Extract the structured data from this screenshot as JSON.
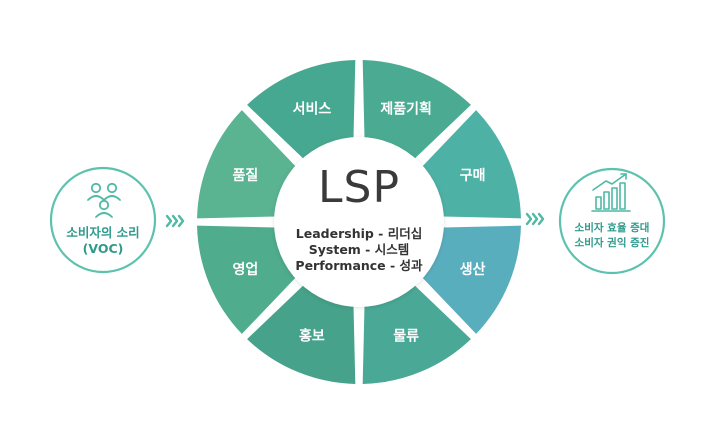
{
  "center": {
    "title": "LSP",
    "lines": [
      "Leadership - 리더십",
      "System - 시스템",
      "Performance - 성과"
    ]
  },
  "segments": [
    {
      "label": "서비스",
      "color": "#47a891"
    },
    {
      "label": "제품기획",
      "color": "#4aab92"
    },
    {
      "label": "구매",
      "color": "#4eb1a5"
    },
    {
      "label": "생산",
      "color": "#59aebe"
    },
    {
      "label": "물류",
      "color": "#4aa896"
    },
    {
      "label": "홍보",
      "color": "#46a28a"
    },
    {
      "label": "영업",
      "color": "#4fac8c"
    },
    {
      "label": "품질",
      "color": "#5ab391"
    }
  ],
  "left_node": {
    "icon": "people-icon",
    "line1": "소비자의 소리",
    "line2": "(VOC)"
  },
  "right_node": {
    "icon": "bar-chart-icon",
    "line1": "소비자 효율 증대",
    "line2": "소비자 권익 증진"
  },
  "colors": {
    "accent": "#4fb9a4",
    "side_ring": "#5cc2ad",
    "side_text": "#2f9a8c",
    "center_text": "#333333"
  }
}
